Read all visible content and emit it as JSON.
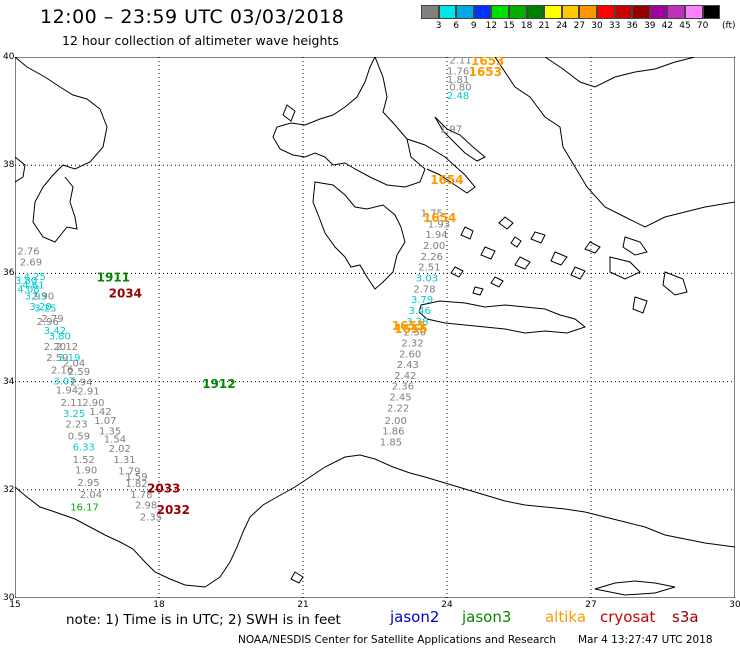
{
  "title": "12:00 – 23:59 UTC 03/03/2018",
  "subtitle": "12 hour collection of altimeter wave heights",
  "colorbar": {
    "colors": [
      "#808080",
      "#00e5e5",
      "#00a8e8",
      "#0030ff",
      "#00e000",
      "#00b000",
      "#008000",
      "#ffff00",
      "#ffc800",
      "#ff9600",
      "#ff0000",
      "#c80000",
      "#960000",
      "#a000a0",
      "#c030c0",
      "#ff80ff",
      "#000000"
    ],
    "labels": [
      "3",
      "6",
      "9",
      "12",
      "15",
      "18",
      "21",
      "24",
      "27",
      "30",
      "33",
      "36",
      "39",
      "42",
      "45",
      "70"
    ],
    "unit": "(ft)"
  },
  "lat_labels": [
    "40",
    "38",
    "36",
    "34",
    "32",
    "30"
  ],
  "lon_labels": [
    "15",
    "18",
    "21",
    "24",
    "27",
    "30"
  ],
  "note": "note:  1) Time is in UTC; 2) SWH is in feet",
  "legend": [
    {
      "name": "jason2",
      "color": "#0000cc"
    },
    {
      "name": "jason3",
      "color": "#008800"
    },
    {
      "name": "altika",
      "color": "#ff9900"
    },
    {
      "name": "cryosat",
      "color": "#cc0000"
    },
    {
      "name": "s3a",
      "color": "#990000"
    }
  ],
  "credit": "NOAA/NESDIS Center for Satellite Applications and Research",
  "generated": "Mar  4 13:27:47 UTC 2018",
  "time_labels": [
    {
      "text": "1911",
      "color": "#008800",
      "lon": 16.7,
      "lat": 35.85
    },
    {
      "text": "2034",
      "color": "#990000",
      "lon": 16.95,
      "lat": 35.55
    },
    {
      "text": "1912",
      "color": "#008800",
      "lon": 18.9,
      "lat": 33.88
    },
    {
      "text": "2033",
      "color": "#990000",
      "lon": 17.75,
      "lat": 31.95
    },
    {
      "text": "2032",
      "color": "#990000",
      "lon": 17.95,
      "lat": 31.55
    },
    {
      "text": "1654",
      "color": "#ff9900",
      "lon": 23.65,
      "lat": 37.65
    },
    {
      "text": "1654",
      "color": "#ff9900",
      "lon": 23.5,
      "lat": 36.95
    },
    {
      "text": "1655",
      "color": "#ff9900",
      "lon": 22.85,
      "lat": 34.95
    },
    {
      "text": "1655",
      "color": "#ff9900",
      "lon": 22.9,
      "lat": 34.9
    },
    {
      "text": "1653",
      "color": "#ff9900",
      "lon": 24.5,
      "lat": 39.85
    },
    {
      "text": "1653",
      "color": "#ff9900",
      "lon": 24.45,
      "lat": 39.65
    }
  ],
  "swh": [
    {
      "v": "2.76",
      "color": "#808080",
      "lon": 15.05,
      "lat": 36.35
    },
    {
      "v": "2.69",
      "color": "#808080",
      "lon": 15.1,
      "lat": 36.15
    },
    {
      "v": "3.80",
      "color": "#00cccc",
      "lon": 15.0,
      "lat": 35.8
    },
    {
      "v": "4.25",
      "color": "#00cccc",
      "lon": 15.18,
      "lat": 35.88
    },
    {
      "v": "4.61",
      "color": "#00cccc",
      "lon": 15.15,
      "lat": 35.72
    },
    {
      "v": "4.08",
      "color": "#00cccc",
      "lon": 15.05,
      "lat": 35.65
    },
    {
      "v": "3.93",
      "color": "#00cccc",
      "lon": 15.2,
      "lat": 35.52
    },
    {
      "v": "2.90",
      "color": "#808080",
      "lon": 15.35,
      "lat": 35.52
    },
    {
      "v": "3.20",
      "color": "#00cccc",
      "lon": 15.3,
      "lat": 35.32
    },
    {
      "v": "3.25",
      "color": "#00cccc",
      "lon": 15.4,
      "lat": 35.3
    },
    {
      "v": "2.96",
      "color": "#808080",
      "lon": 15.45,
      "lat": 35.05
    },
    {
      "v": "2.79",
      "color": "#808080",
      "lon": 15.55,
      "lat": 35.1
    },
    {
      "v": "3.42",
      "color": "#00cccc",
      "lon": 15.6,
      "lat": 34.88
    },
    {
      "v": "3.80",
      "color": "#00cccc",
      "lon": 15.7,
      "lat": 34.78
    },
    {
      "v": "2.20",
      "color": "#808080",
      "lon": 15.6,
      "lat": 34.58
    },
    {
      "v": "2.12",
      "color": "#808080",
      "lon": 15.85,
      "lat": 34.58
    },
    {
      "v": "2.59",
      "color": "#808080",
      "lon": 15.65,
      "lat": 34.38
    },
    {
      "v": "3.19",
      "color": "#00cccc",
      "lon": 15.9,
      "lat": 34.38
    },
    {
      "v": "2.04",
      "color": "#808080",
      "lon": 16.0,
      "lat": 34.28
    },
    {
      "v": "2.16",
      "color": "#808080",
      "lon": 15.75,
      "lat": 34.15
    },
    {
      "v": "2.59",
      "color": "#808080",
      "lon": 16.1,
      "lat": 34.12
    },
    {
      "v": "3.07",
      "color": "#00cccc",
      "lon": 15.8,
      "lat": 33.95
    },
    {
      "v": "2.94",
      "color": "#808080",
      "lon": 16.15,
      "lat": 33.93
    },
    {
      "v": "1.94",
      "color": "#808080",
      "lon": 15.85,
      "lat": 33.78
    },
    {
      "v": "2.91",
      "color": "#808080",
      "lon": 16.3,
      "lat": 33.76
    },
    {
      "v": "2.11",
      "color": "#808080",
      "lon": 15.95,
      "lat": 33.55
    },
    {
      "v": "2.90",
      "color": "#808080",
      "lon": 16.4,
      "lat": 33.55
    },
    {
      "v": "1.42",
      "color": "#808080",
      "lon": 16.55,
      "lat": 33.38
    },
    {
      "v": "3.25",
      "color": "#00cccc",
      "lon": 16.0,
      "lat": 33.35
    },
    {
      "v": "1.07",
      "color": "#808080",
      "lon": 16.65,
      "lat": 33.22
    },
    {
      "v": "2.23",
      "color": "#808080",
      "lon": 16.05,
      "lat": 33.15
    },
    {
      "v": "1.35",
      "color": "#808080",
      "lon": 16.75,
      "lat": 33.02
    },
    {
      "v": "0.59",
      "color": "#808080",
      "lon": 16.1,
      "lat": 32.93
    },
    {
      "v": "1.54",
      "color": "#808080",
      "lon": 16.85,
      "lat": 32.87
    },
    {
      "v": "6.33",
      "color": "#00cccc",
      "lon": 16.2,
      "lat": 32.73
    },
    {
      "v": "2.02",
      "color": "#808080",
      "lon": 16.95,
      "lat": 32.7
    },
    {
      "v": "1.52",
      "color": "#808080",
      "lon": 16.2,
      "lat": 32.5
    },
    {
      "v": "1.31",
      "color": "#808080",
      "lon": 17.05,
      "lat": 32.5
    },
    {
      "v": "1.90",
      "color": "#808080",
      "lon": 16.25,
      "lat": 32.3
    },
    {
      "v": "1.79",
      "color": "#808080",
      "lon": 17.15,
      "lat": 32.28
    },
    {
      "v": "1.59",
      "color": "#808080",
      "lon": 17.3,
      "lat": 32.18
    },
    {
      "v": "2.95",
      "color": "#808080",
      "lon": 16.3,
      "lat": 32.07
    },
    {
      "v": "1.82",
      "color": "#808080",
      "lon": 17.3,
      "lat": 32.05
    },
    {
      "v": "2.04",
      "color": "#808080",
      "lon": 16.35,
      "lat": 31.85
    },
    {
      "v": "1.78",
      "color": "#808080",
      "lon": 17.4,
      "lat": 31.85
    },
    {
      "v": "16.17",
      "color": "#00b000",
      "lon": 16.15,
      "lat": 31.62
    },
    {
      "v": "2.98",
      "color": "#808080",
      "lon": 17.5,
      "lat": 31.65
    },
    {
      "v": "2.35",
      "color": "#808080",
      "lon": 17.6,
      "lat": 31.43
    },
    {
      "v": "1.85",
      "color": "#808080",
      "lon": 22.6,
      "lat": 32.82
    },
    {
      "v": "1.86",
      "color": "#808080",
      "lon": 22.65,
      "lat": 33.02
    },
    {
      "v": "2.00",
      "color": "#808080",
      "lon": 22.7,
      "lat": 33.22
    },
    {
      "v": "2.22",
      "color": "#808080",
      "lon": 22.75,
      "lat": 33.45
    },
    {
      "v": "2.45",
      "color": "#808080",
      "lon": 22.8,
      "lat": 33.65
    },
    {
      "v": "2.36",
      "color": "#808080",
      "lon": 22.85,
      "lat": 33.85
    },
    {
      "v": "2.42",
      "color": "#808080",
      "lon": 22.9,
      "lat": 34.05
    },
    {
      "v": "2.43",
      "color": "#808080",
      "lon": 22.95,
      "lat": 34.25
    },
    {
      "v": "2.60",
      "color": "#808080",
      "lon": 23.0,
      "lat": 34.45
    },
    {
      "v": "2.32",
      "color": "#808080",
      "lon": 23.05,
      "lat": 34.65
    },
    {
      "v": "2.50",
      "color": "#808080",
      "lon": 23.1,
      "lat": 34.85
    },
    {
      "v": "3.38",
      "color": "#00cccc",
      "lon": 23.15,
      "lat": 35.05
    },
    {
      "v": "3.46",
      "color": "#00cccc",
      "lon": 23.2,
      "lat": 35.25
    },
    {
      "v": "3.79",
      "color": "#00cccc",
      "lon": 23.25,
      "lat": 35.45
    },
    {
      "v": "2.78",
      "color": "#808080",
      "lon": 23.3,
      "lat": 35.65
    },
    {
      "v": "3.03",
      "color": "#00cccc",
      "lon": 23.35,
      "lat": 35.85
    },
    {
      "v": "2.51",
      "color": "#808080",
      "lon": 23.4,
      "lat": 36.05
    },
    {
      "v": "2.26",
      "color": "#808080",
      "lon": 23.45,
      "lat": 36.25
    },
    {
      "v": "2.00",
      "color": "#808080",
      "lon": 23.5,
      "lat": 36.45
    },
    {
      "v": "1.94",
      "color": "#808080",
      "lon": 23.55,
      "lat": 36.65
    },
    {
      "v": "1.93",
      "color": "#808080",
      "lon": 23.6,
      "lat": 36.85
    },
    {
      "v": "1.75",
      "color": "#808080",
      "lon": 23.45,
      "lat": 37.05
    },
    {
      "v": "1.97",
      "color": "#808080",
      "lon": 23.85,
      "lat": 38.6
    },
    {
      "v": "2.48",
      "color": "#00cccc",
      "lon": 24.0,
      "lat": 39.22
    },
    {
      "v": "0.80",
      "color": "#808080",
      "lon": 24.05,
      "lat": 39.38
    },
    {
      "v": "1.81",
      "color": "#808080",
      "lon": 24.0,
      "lat": 39.52
    },
    {
      "v": "1.76",
      "color": "#808080",
      "lon": 24.0,
      "lat": 39.68
    },
    {
      "v": "2.11",
      "color": "#808080",
      "lon": 24.05,
      "lat": 39.88
    }
  ]
}
